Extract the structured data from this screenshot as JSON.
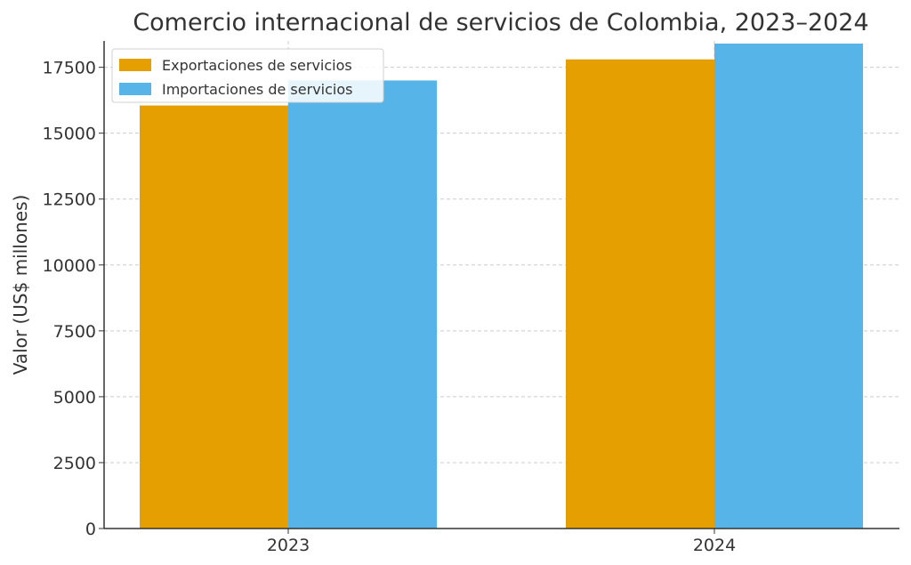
{
  "chart_data": {
    "type": "bar",
    "title": "Comercio internacional de servicios de Colombia, 2023–2024",
    "xlabel": "",
    "ylabel": "Valor (US$ millones)",
    "categories": [
      "2023",
      "2024"
    ],
    "series": [
      {
        "name": "Exportaciones de servicios",
        "values": [
          16050,
          17800
        ],
        "color": "#E69F00"
      },
      {
        "name": "Importaciones de servicios",
        "values": [
          17000,
          18400
        ],
        "color": "#56B4E9"
      }
    ],
    "ylim": [
      0,
      18500
    ],
    "yticks": [
      0,
      2500,
      5000,
      7500,
      10000,
      12500,
      15000,
      17500
    ],
    "grid": true,
    "legend_position": "top-left"
  }
}
